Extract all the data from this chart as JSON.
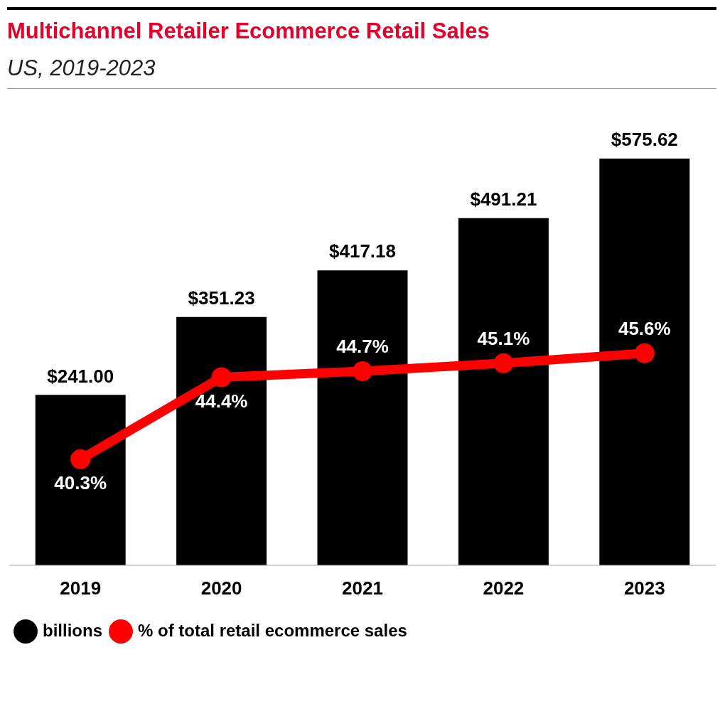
{
  "chart_data": {
    "type": "bar",
    "title": "Multichannel Retailer Ecommerce Retail Sales",
    "subtitle": "US, 2019-2023",
    "categories": [
      "2019",
      "2020",
      "2021",
      "2022",
      "2023"
    ],
    "series": [
      {
        "name": "billions",
        "color": "#000000",
        "values": [
          241.0,
          351.23,
          417.18,
          491.21,
          575.62
        ],
        "value_labels": [
          "$241.00",
          "$351.23",
          "$417.18",
          "$491.21",
          "$575.62"
        ]
      },
      {
        "name": "% of total retail ecommerce sales",
        "type": "line",
        "axis": "y2",
        "color": "#ff0000",
        "values": [
          40.3,
          44.4,
          44.7,
          45.1,
          45.6
        ],
        "value_labels": [
          "40.3%",
          "44.4%",
          "44.7%",
          "45.1%",
          "45.6%"
        ]
      }
    ],
    "tick_labels": "x",
    "grid": false,
    "legend": "bottom left",
    "marker": "circle",
    "line_style": "solid"
  }
}
